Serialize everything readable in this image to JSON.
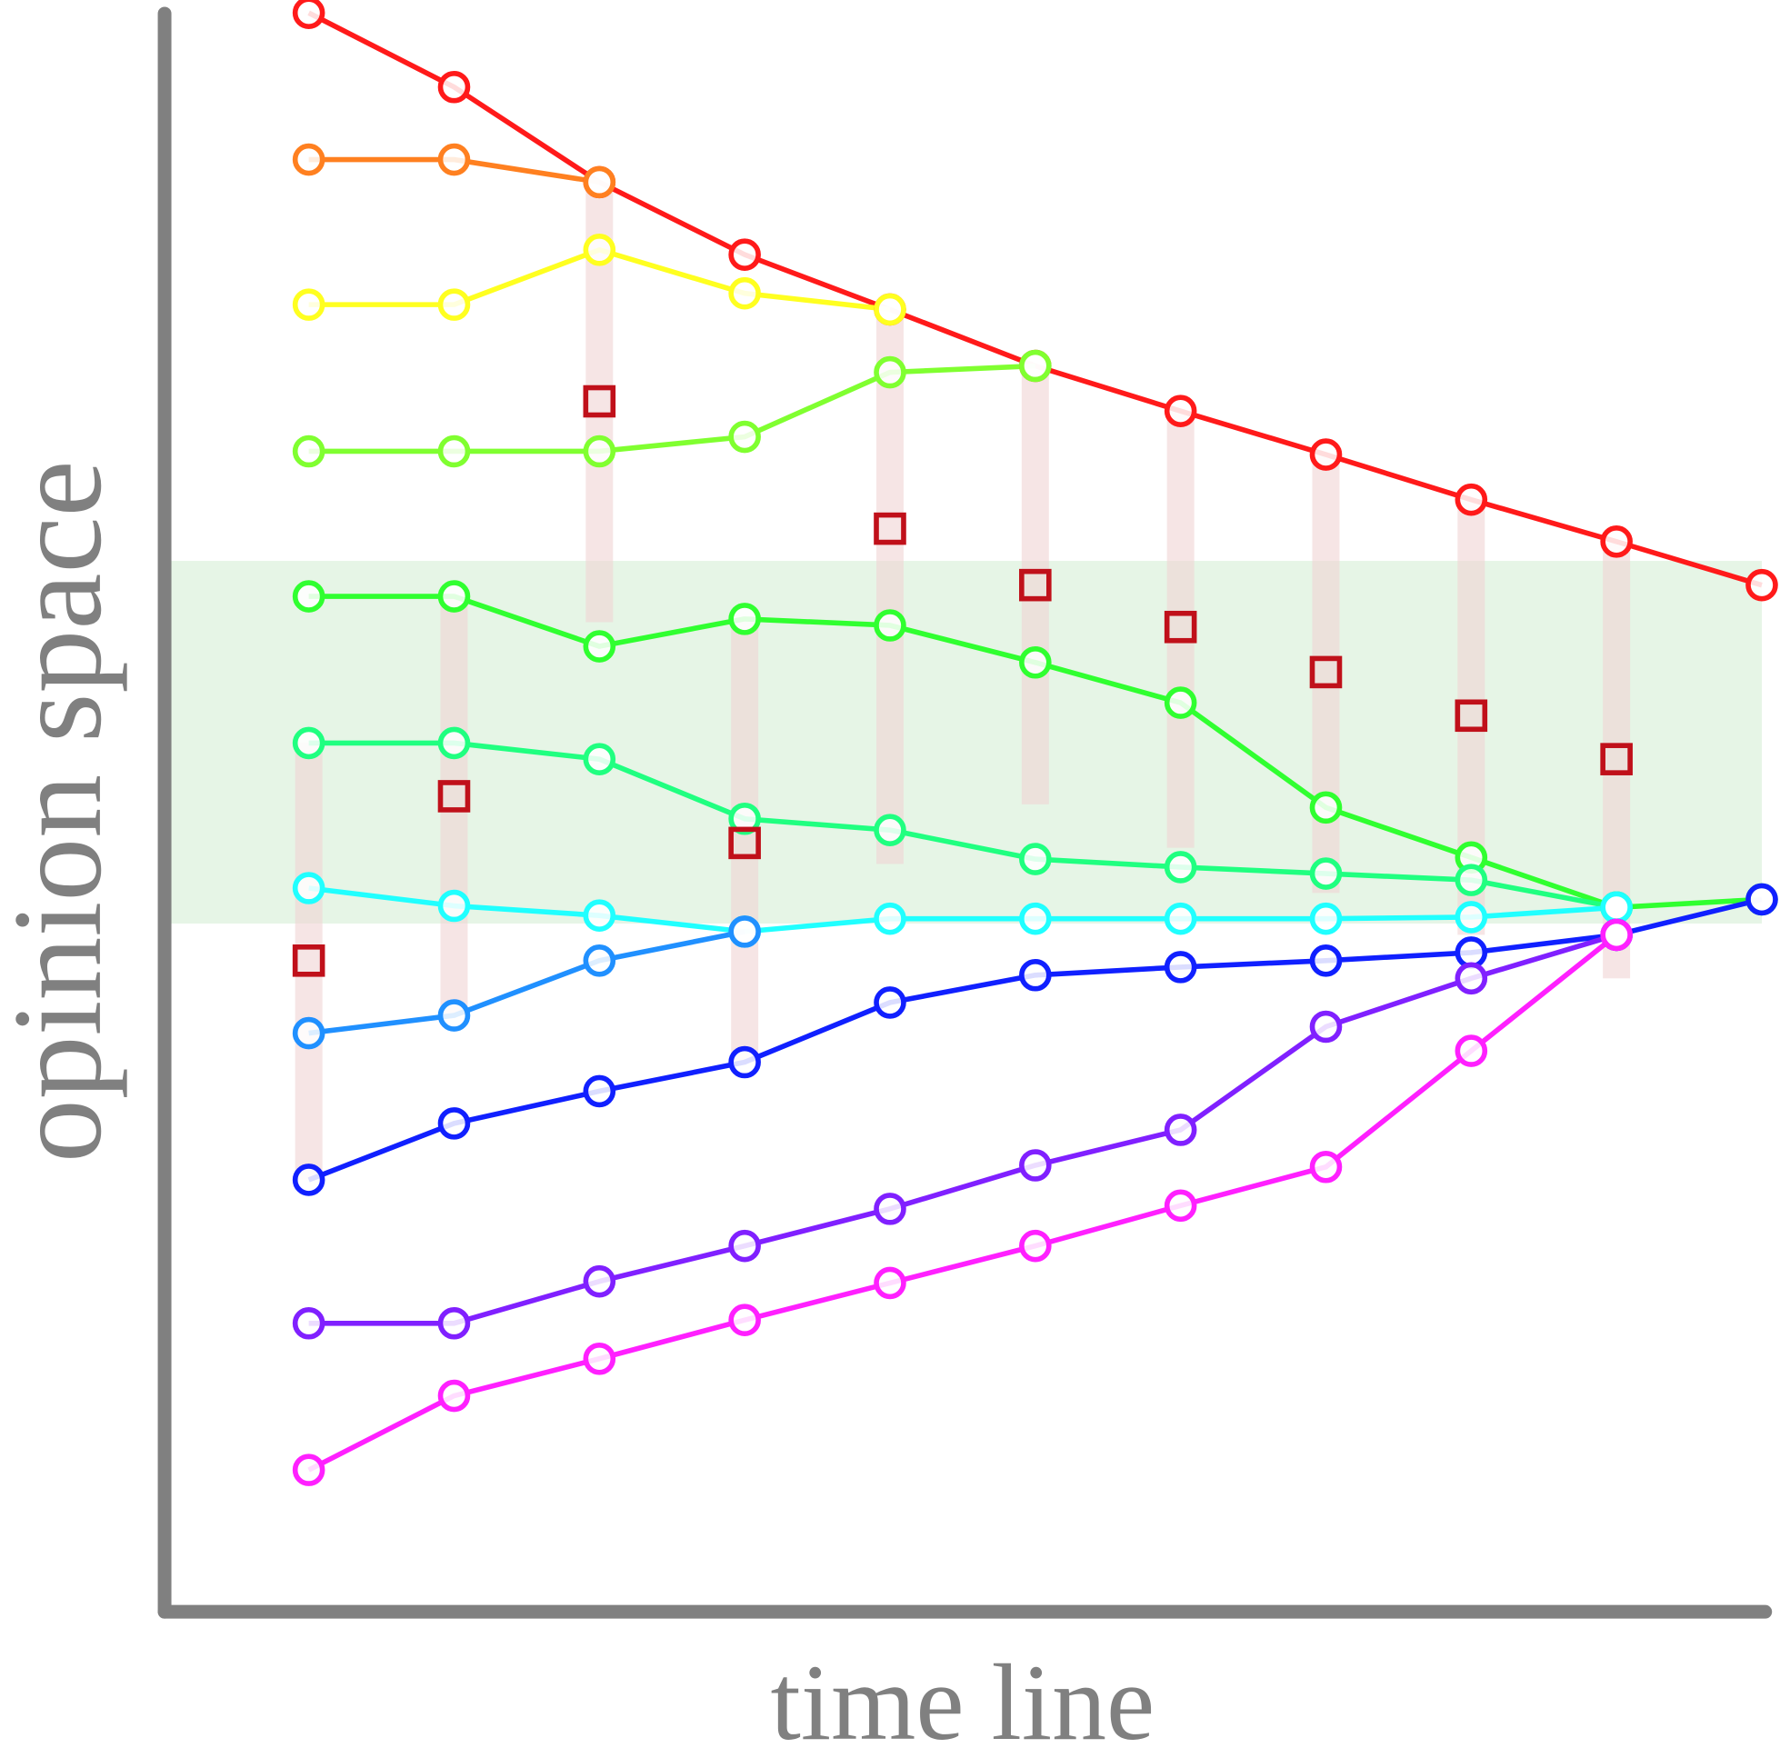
{
  "chart_data": {
    "type": "line",
    "x_label": "time line",
    "y_label": "opinion space",
    "x": [
      1,
      2,
      3,
      4,
      5,
      6,
      7,
      8,
      9,
      10,
      11
    ],
    "xlim": [
      0,
      11
    ],
    "ylim": [
      0,
      100
    ],
    "band": [
      42.7,
      65.2
    ],
    "band_color": "#e6f5e6",
    "range_color": "#f0d4d4",
    "ranges": [
      [
        26.8,
        53.9
      ],
      [
        37.0,
        63.0
      ],
      [
        61.4,
        88.7
      ],
      [
        34.1,
        61.6
      ],
      [
        46.4,
        80.8
      ],
      [
        50.1,
        77.3
      ],
      [
        47.4,
        74.5
      ],
      [
        44.6,
        71.8
      ],
      [
        42.0,
        69.0
      ],
      [
        39.3,
        66.4
      ]
    ],
    "square_color": "#c0101a",
    "squares": [
      40.4,
      50.6,
      75.1,
      47.7,
      67.2,
      63.7,
      61.1,
      58.3,
      55.6,
      52.9
    ],
    "series": [
      {
        "color": "#ff1a1a",
        "values": [
          99.2,
          94.6,
          88.7,
          84.2,
          80.8,
          77.3,
          74.5,
          71.8,
          69.0,
          66.4,
          63.7
        ]
      },
      {
        "color": "#ff8020",
        "values": [
          90.1,
          90.1,
          88.7,
          null,
          null,
          null,
          null,
          null,
          null,
          null,
          null
        ]
      },
      {
        "color": "#ffff20",
        "values": [
          81.1,
          81.1,
          84.5,
          81.8,
          80.8,
          null,
          null,
          null,
          null,
          null,
          null
        ]
      },
      {
        "color": "#80ff30",
        "values": [
          72.0,
          72.0,
          72.0,
          72.9,
          76.9,
          77.3,
          null,
          null,
          null,
          null,
          null
        ]
      },
      {
        "color": "#30ff30",
        "values": [
          63.0,
          63.0,
          59.9,
          61.6,
          61.2,
          58.9,
          56.4,
          49.9,
          46.8,
          43.7,
          44.2
        ]
      },
      {
        "color": "#20ff80",
        "values": [
          53.9,
          53.9,
          52.9,
          49.2,
          48.5,
          46.7,
          46.2,
          45.8,
          45.4,
          43.7,
          null
        ]
      },
      {
        "color": "#20ffff",
        "values": [
          44.9,
          43.8,
          43.2,
          42.2,
          43.0,
          43.0,
          43.0,
          43.0,
          43.1,
          43.7,
          null
        ]
      },
      {
        "color": "#2090ff",
        "values": [
          35.9,
          37.0,
          40.4,
          42.2,
          null,
          null,
          null,
          null,
          null,
          null,
          null
        ]
      },
      {
        "color": "#1020ff",
        "values": [
          26.8,
          30.3,
          32.3,
          34.1,
          37.8,
          39.5,
          40.0,
          40.4,
          40.9,
          42.0,
          44.2
        ]
      },
      {
        "color": "#8020ff",
        "values": [
          17.9,
          17.9,
          20.5,
          22.7,
          25.0,
          27.7,
          29.9,
          36.3,
          39.3,
          42.0,
          null
        ]
      },
      {
        "color": "#ff20ff",
        "values": [
          8.8,
          13.4,
          15.7,
          18.1,
          20.4,
          22.7,
          25.2,
          27.6,
          34.8,
          42.0,
          null
        ]
      }
    ]
  }
}
